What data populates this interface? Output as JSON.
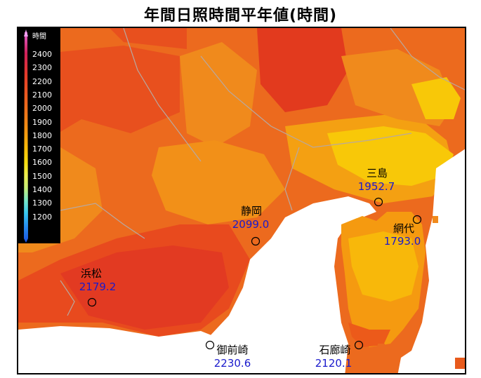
{
  "title": "年間日照時間平年値(時間)",
  "legend": {
    "unit": "時間",
    "levels": [
      "2400",
      "2300",
      "2200",
      "2100",
      "2000",
      "1900",
      "1800",
      "1700",
      "1600",
      "1500",
      "1400",
      "1300",
      "1200"
    ],
    "colors": [
      "#d0205a",
      "#e53a2a",
      "#ec5a20",
      "#f07a18",
      "#f59a10",
      "#f8bc08",
      "#f6de10",
      "#eef050",
      "#c8f078",
      "#78e8c8",
      "#38c8f0",
      "#2890f0",
      "#1a50e0"
    ]
  },
  "stations": [
    {
      "name": "浜松",
      "value": "2179.2"
    },
    {
      "name": "静岡",
      "value": "2099.0"
    },
    {
      "name": "三島",
      "value": "1952.7"
    },
    {
      "name": "網代",
      "value": "1793.0"
    },
    {
      "name": "御前崎",
      "value": "2230.6"
    },
    {
      "name": "石廊崎",
      "value": "2120.1"
    }
  ]
}
